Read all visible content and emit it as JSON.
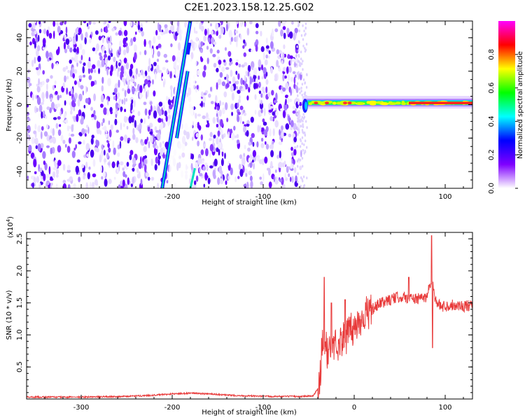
{
  "title": "C2E1.2023.158.12.25.G02",
  "chart_data": [
    {
      "type": "heatmap",
      "xlabel": "Height of straight line (km)",
      "ylabel": "Frequency (Hz)",
      "xlim": [
        -360,
        130
      ],
      "ylim": [
        -50,
        50
      ],
      "xticks": [
        -300,
        -200,
        -100,
        0,
        100
      ],
      "xtick_labels": [
        "-300",
        "-200",
        "-100",
        "0",
        "100"
      ],
      "yticks": [
        -40,
        -20,
        0,
        20,
        40
      ],
      "ytick_labels": [
        "-40",
        "-20",
        "0",
        "20",
        "40"
      ],
      "noise_region_x": [
        -360,
        -58
      ],
      "diagonal_streaks": [
        {
          "x_start": -211,
          "y_start": -50,
          "x_end": -180,
          "y_end": 50
        },
        {
          "x_start": -195,
          "y_start": -20,
          "x_end": -183,
          "y_end": 20
        }
      ],
      "signal_band": {
        "x_start": -60,
        "x_end": 130,
        "frequency_hz": 1,
        "peak_x_start": 60,
        "peak_x_end": 130
      },
      "colorbar": {
        "label": "Normalized spectral amplitude",
        "range": [
          0,
          1
        ],
        "ticks": [
          0.0,
          0.2,
          0.4,
          0.6,
          0.8
        ],
        "tick_labels": [
          "0.0",
          "0.2",
          "0.4",
          "0.6",
          "0.8"
        ],
        "colormap": [
          "#ffffff",
          "#7f00ff",
          "#0000ff",
          "#00ffff",
          "#00ff00",
          "#ffff00",
          "#ff0000",
          "#ff00ff"
        ]
      }
    },
    {
      "type": "line",
      "xlabel": "Height of straight line (km)",
      "ylabel": "SNR (10 * v/v)",
      "y_scale_label": "(x10",
      "y_scale_exponent": "4",
      "y_scale_close": ")",
      "xlim": [
        -360,
        130
      ],
      "ylim": [
        0,
        2.6
      ],
      "xticks": [
        -300,
        -200,
        -100,
        0,
        100
      ],
      "xtick_labels": [
        "-300",
        "-200",
        "-100",
        "0",
        "100"
      ],
      "yticks": [
        0.5,
        1.0,
        1.5,
        2.0,
        2.5
      ],
      "ytick_labels": [
        "0.5",
        "1.0",
        "1.5",
        "2.0",
        "2.5"
      ],
      "color": "#e83a3a",
      "series": [
        {
          "x": [
            -360,
            -300,
            -250,
            -220,
            -200,
            -180,
            -160,
            -140,
            -120,
            -100,
            -80,
            -60,
            -45,
            -38,
            -35,
            -30,
            -25,
            -20,
            -15,
            -10,
            -5,
            0,
            10,
            20,
            30,
            40,
            50,
            60,
            70,
            80,
            85,
            90,
            95,
            100,
            110,
            120,
            130
          ],
          "y": [
            0.03,
            0.03,
            0.04,
            0.06,
            0.08,
            0.09,
            0.08,
            0.06,
            0.05,
            0.04,
            0.04,
            0.04,
            0.05,
            0.2,
            0.9,
            0.75,
            0.8,
            0.85,
            0.9,
            0.95,
            1.05,
            1.1,
            1.3,
            1.4,
            1.5,
            1.55,
            1.6,
            1.58,
            1.56,
            1.6,
            1.9,
            1.5,
            1.45,
            1.45,
            1.47,
            1.45,
            1.45
          ]
        }
      ],
      "peaks": [
        {
          "x": -33,
          "y": 1.9
        },
        {
          "x": -25,
          "y": 1.5
        },
        {
          "x": -10,
          "y": 1.55
        },
        {
          "x": 60,
          "y": 1.9
        },
        {
          "x": 85,
          "y": 2.55
        },
        {
          "x": 86,
          "y": 0.8
        }
      ]
    }
  ]
}
